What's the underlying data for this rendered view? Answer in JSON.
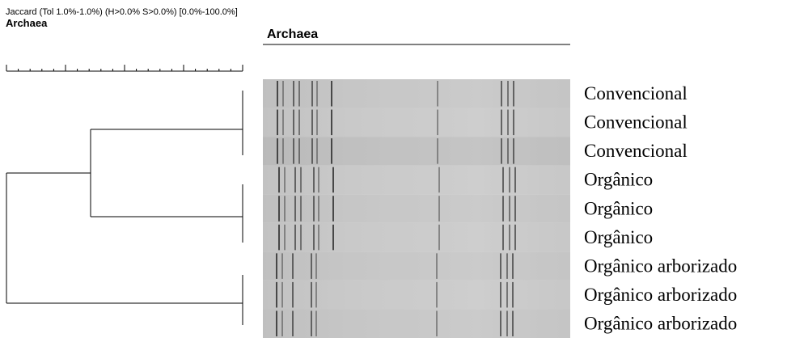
{
  "header": {
    "method": "Jaccard (Tol 1.0%-1.0%) (H>0.0% S>0.0%) [0.0%-100.0%]",
    "title": "Archaea"
  },
  "gel": {
    "title": "Archaea"
  },
  "lanes": [
    "Convencional",
    "Convencional",
    "Convencional",
    "Orgânico",
    "Orgânico",
    "Orgânico",
    "Orgânico arborizado",
    "Orgânico arborizado",
    "Orgânico arborizado"
  ]
}
